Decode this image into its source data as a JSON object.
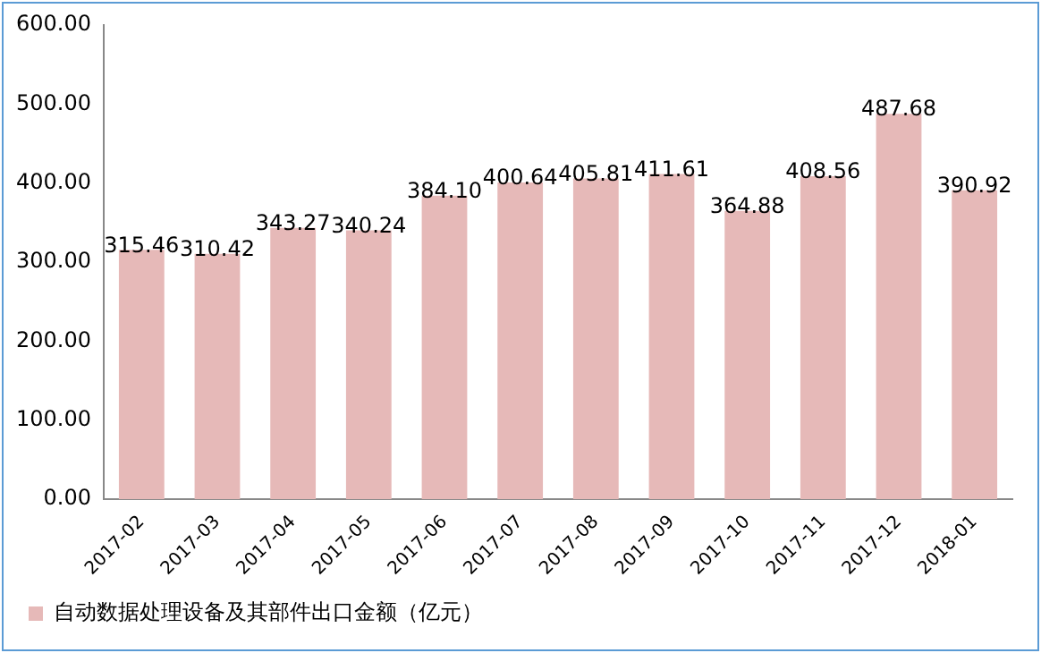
{
  "chart_data": {
    "type": "bar",
    "categories": [
      "2017-02",
      "2017-03",
      "2017-04",
      "2017-05",
      "2017-06",
      "2017-07",
      "2017-08",
      "2017-09",
      "2017-10",
      "2017-11",
      "2017-12",
      "2018-01"
    ],
    "series": [
      {
        "name": "自动数据处理设备及其部件出口金额（亿元）",
        "color": "#e6b9b8",
        "values": [
          315.46,
          310.42,
          343.27,
          340.24,
          384.1,
          400.64,
          405.81,
          411.61,
          364.88,
          408.56,
          487.68,
          390.92
        ]
      }
    ],
    "value_labels": [
      "315.46",
      "310.42",
      "343.27",
      "340.24",
      "384.10",
      "400.64",
      "405.81",
      "411.61",
      "364.88",
      "408.56",
      "487.68",
      "390.92"
    ],
    "ylim": [
      0,
      600
    ],
    "yticks": [
      {
        "value": 0,
        "label": "0.00"
      },
      {
        "value": 100,
        "label": "100.00"
      },
      {
        "value": 200,
        "label": "200.00"
      },
      {
        "value": 300,
        "label": "300.00"
      },
      {
        "value": 400,
        "label": "400.00"
      },
      {
        "value": 500,
        "label": "500.00"
      },
      {
        "value": 600,
        "label": "600.00"
      }
    ],
    "grid": false,
    "legend": "bottom"
  }
}
